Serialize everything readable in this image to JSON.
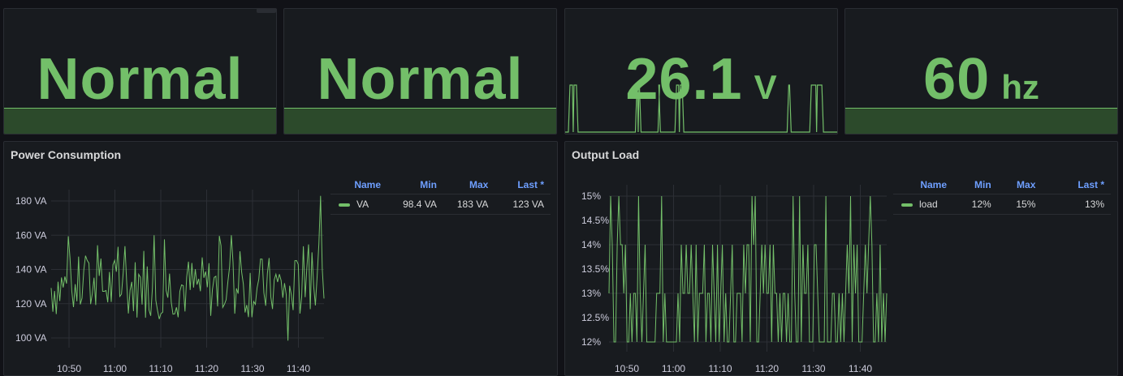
{
  "stats": [
    {
      "value": "Normal",
      "unit": ""
    },
    {
      "value": "Normal",
      "unit": ""
    },
    {
      "value": "26.1",
      "unit": "V"
    },
    {
      "value": "60",
      "unit": "hz"
    }
  ],
  "colors": {
    "accent": "#73bf69",
    "legend_header": "#6e9fff",
    "panel_bg": "#181b1f",
    "page_bg": "#111217"
  },
  "power": {
    "title": "Power Consumption",
    "legend": {
      "headers": {
        "name": "Name",
        "min": "Min",
        "max": "Max",
        "last": "Last *"
      },
      "row": {
        "name": "VA",
        "min": "98.4 VA",
        "max": "183 VA",
        "last": "123 VA"
      }
    },
    "chart_data": {
      "type": "line",
      "x_ticks": [
        "10:50",
        "11:00",
        "11:10",
        "11:20",
        "11:30",
        "11:40"
      ],
      "y_ticks": [
        "180 VA",
        "160 VA",
        "140 VA",
        "120 VA",
        "100 VA"
      ],
      "ylim": [
        100,
        180
      ],
      "series": [
        {
          "name": "VA",
          "min": 98.4,
          "max": 183,
          "last": 123
        }
      ],
      "grid": true
    }
  },
  "load": {
    "title": "Output Load",
    "legend": {
      "headers": {
        "name": "Name",
        "min": "Min",
        "max": "Max",
        "last": "Last *"
      },
      "row": {
        "name": "load",
        "min": "12%",
        "max": "15%",
        "last": "13%"
      }
    },
    "chart_data": {
      "type": "line",
      "x_ticks": [
        "10:50",
        "11:00",
        "11:10",
        "11:20",
        "11:30",
        "11:40"
      ],
      "y_ticks": [
        "15%",
        "14.5%",
        "14%",
        "13.5%",
        "13%",
        "12.5%",
        "12%"
      ],
      "ylim": [
        12,
        15
      ],
      "series": [
        {
          "name": "load",
          "min": 12,
          "max": 15,
          "last": 13
        }
      ],
      "grid": true
    }
  }
}
